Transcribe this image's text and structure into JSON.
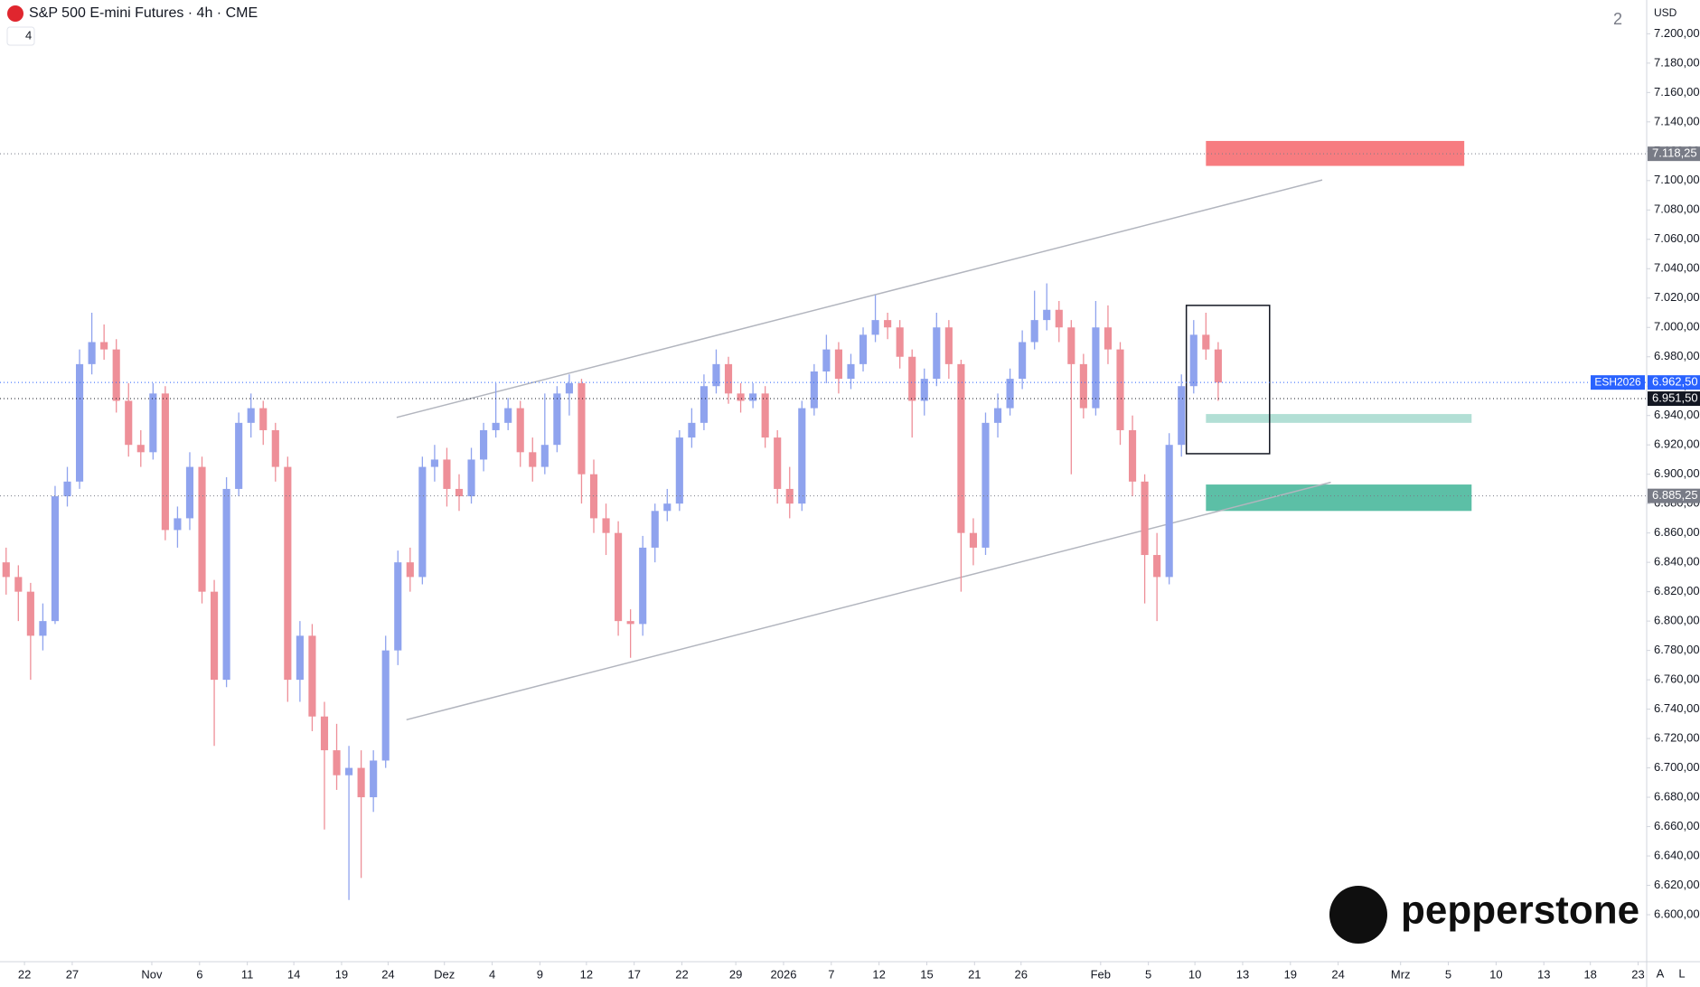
{
  "header": {
    "title": "S&P 500 E-mini Futures · 4h · CME",
    "indicator_count": "4",
    "currency": "USD",
    "layout_number": "2",
    "watermark": "pepperstone",
    "scale_buttons": [
      "A",
      "L"
    ]
  },
  "chart_data": {
    "type": "candlestick",
    "open": [
      6840,
      6830,
      6820,
      6790,
      6800,
      6885,
      6895,
      6975,
      6990,
      6985,
      6950,
      6920,
      6915,
      6955,
      6862,
      6870,
      6905,
      6820,
      6760,
      6890,
      6935,
      6945,
      6930,
      6905,
      6760,
      6790,
      6735,
      6712,
      6695,
      6700,
      6680,
      6705,
      6780,
      6840,
      6830,
      6905,
      6910,
      6890,
      6885,
      6910,
      6930,
      6935,
      6945,
      6915,
      6905,
      6920,
      6955,
      6962,
      6900,
      6870,
      6860,
      6800,
      6798,
      6850,
      6875,
      6880,
      6925,
      6935,
      6960,
      6975,
      6955,
      6950,
      6955,
      6925,
      6890,
      6880,
      6945,
      6970,
      6985,
      6965,
      6975,
      6995,
      7005,
      7000,
      6980,
      6950,
      6965,
      7000,
      6975,
      6860,
      6850,
      6935,
      6945,
      6965,
      6990,
      7005,
      7012,
      7000,
      6975,
      6945,
      7000,
      6985,
      6930,
      6895,
      6845,
      6830,
      6920,
      6960,
      6995,
      6985
    ],
    "high": [
      6850,
      6838,
      6826,
      6812,
      6892,
      6905,
      6985,
      7010,
      7002,
      6992,
      6962,
      6930,
      6962,
      6960,
      6878,
      6915,
      6912,
      6828,
      6898,
      6942,
      6955,
      6950,
      6935,
      6912,
      6800,
      6798,
      6745,
      6730,
      6715,
      6712,
      6712,
      6790,
      6848,
      6850,
      6912,
      6920,
      6918,
      6900,
      6918,
      6935,
      6962,
      6952,
      6950,
      6925,
      6955,
      6960,
      6968,
      6965,
      6910,
      6880,
      6868,
      6808,
      6858,
      6880,
      6890,
      6930,
      6945,
      6968,
      6985,
      6980,
      6962,
      6962,
      6960,
      6930,
      6905,
      6950,
      6975,
      6995,
      6990,
      6982,
      7000,
      7022,
      7010,
      7005,
      6985,
      6972,
      7010,
      7005,
      6978,
      6870,
      6942,
      6955,
      6972,
      6998,
      7025,
      7030,
      7018,
      7005,
      6982,
      7018,
      7015,
      6990,
      6940,
      6900,
      6860,
      6928,
      6968,
      7005,
      7010,
      6990
    ],
    "low": [
      6818,
      6800,
      6760,
      6780,
      6798,
      6878,
      6890,
      6968,
      6978,
      6942,
      6912,
      6905,
      6910,
      6855,
      6850,
      6862,
      6812,
      6715,
      6755,
      6885,
      6925,
      6920,
      6895,
      6745,
      6745,
      6725,
      6658,
      6685,
      6610,
      6625,
      6670,
      6700,
      6770,
      6820,
      6825,
      6895,
      6878,
      6875,
      6880,
      6902,
      6925,
      6930,
      6905,
      6895,
      6900,
      6915,
      6940,
      6880,
      6860,
      6845,
      6790,
      6775,
      6790,
      6840,
      6868,
      6875,
      6918,
      6930,
      6955,
      6948,
      6942,
      6945,
      6918,
      6880,
      6870,
      6875,
      6940,
      6962,
      6955,
      6958,
      6970,
      6990,
      6992,
      6972,
      6925,
      6940,
      6960,
      6965,
      6820,
      6838,
      6845,
      6925,
      6940,
      6958,
      6985,
      6998,
      6990,
      6900,
      6938,
      6940,
      6975,
      6920,
      6885,
      6812,
      6800,
      6825,
      6912,
      6955,
      6978,
      6950
    ],
    "close": [
      6830,
      6820,
      6790,
      6800,
      6885,
      6895,
      6975,
      6990,
      6985,
      6950,
      6920,
      6915,
      6955,
      6862,
      6870,
      6905,
      6820,
      6760,
      6890,
      6935,
      6945,
      6930,
      6905,
      6760,
      6790,
      6735,
      6712,
      6695,
      6700,
      6680,
      6705,
      6780,
      6840,
      6830,
      6905,
      6910,
      6890,
      6885,
      6910,
      6930,
      6935,
      6945,
      6915,
      6905,
      6920,
      6955,
      6962,
      6900,
      6870,
      6860,
      6800,
      6798,
      6850,
      6875,
      6880,
      6925,
      6935,
      6960,
      6975,
      6955,
      6950,
      6955,
      6925,
      6890,
      6880,
      6945,
      6970,
      6985,
      6965,
      6975,
      6995,
      7005,
      7000,
      6980,
      6950,
      6965,
      7000,
      6975,
      6860,
      6850,
      6935,
      6945,
      6965,
      6990,
      7005,
      7012,
      7000,
      6975,
      6945,
      7000,
      6985,
      6930,
      6895,
      6845,
      6830,
      6920,
      6960,
      6995,
      6985,
      6962.5
    ],
    "up_color": "#8fa3ee",
    "down_color": "#ee8f98",
    "xlim": [
      -0.5,
      134
    ],
    "xticks": [
      {
        "value": 1.5,
        "label": "22"
      },
      {
        "value": 5.4,
        "label": "27"
      },
      {
        "value": 11.9,
        "label": "Nov"
      },
      {
        "value": 15.8,
        "label": "6"
      },
      {
        "value": 19.7,
        "label": "11"
      },
      {
        "value": 23.5,
        "label": "14"
      },
      {
        "value": 27.4,
        "label": "19"
      },
      {
        "value": 31.2,
        "label": "24"
      },
      {
        "value": 35.8,
        "label": "Dez"
      },
      {
        "value": 39.7,
        "label": "4"
      },
      {
        "value": 43.6,
        "label": "9"
      },
      {
        "value": 47.4,
        "label": "12"
      },
      {
        "value": 51.3,
        "label": "17"
      },
      {
        "value": 55.2,
        "label": "22"
      },
      {
        "value": 59.6,
        "label": "29"
      },
      {
        "value": 63.5,
        "label": "2026"
      },
      {
        "value": 67.4,
        "label": "7"
      },
      {
        "value": 71.3,
        "label": "12"
      },
      {
        "value": 75.2,
        "label": "15"
      },
      {
        "value": 79.1,
        "label": "21"
      },
      {
        "value": 82.9,
        "label": "26"
      },
      {
        "value": 89.4,
        "label": "Feb"
      },
      {
        "value": 93.3,
        "label": "5"
      },
      {
        "value": 97.1,
        "label": "10"
      },
      {
        "value": 101.0,
        "label": "13"
      },
      {
        "value": 104.9,
        "label": "19"
      },
      {
        "value": 108.8,
        "label": "24"
      },
      {
        "value": 113.9,
        "label": "Mrz"
      },
      {
        "value": 117.8,
        "label": "5"
      },
      {
        "value": 121.7,
        "label": "10"
      },
      {
        "value": 125.6,
        "label": "13"
      },
      {
        "value": 129.4,
        "label": "18"
      },
      {
        "value": 133.3,
        "label": "23"
      }
    ],
    "ylim": [
      6568,
      7223
    ],
    "yticks": [
      {
        "value": 6600,
        "label": "6.600,00"
      },
      {
        "value": 6620,
        "label": "6.620,00"
      },
      {
        "value": 6640,
        "label": "6.640,00"
      },
      {
        "value": 6660,
        "label": "6.660,00"
      },
      {
        "value": 6680,
        "label": "6.680,00"
      },
      {
        "value": 6700,
        "label": "6.700,00"
      },
      {
        "value": 6720,
        "label": "6.720,00"
      },
      {
        "value": 6740,
        "label": "6.740,00"
      },
      {
        "value": 6760,
        "label": "6.760,00"
      },
      {
        "value": 6780,
        "label": "6.780,00"
      },
      {
        "value": 6800,
        "label": "6.800,00"
      },
      {
        "value": 6820,
        "label": "6.820,00"
      },
      {
        "value": 6840,
        "label": "6.840,00"
      },
      {
        "value": 6860,
        "label": "6.860,00"
      },
      {
        "value": 6880,
        "label": "6.880,00"
      },
      {
        "value": 6900,
        "label": "6.900,00"
      },
      {
        "value": 6920,
        "label": "6.920,00"
      },
      {
        "value": 6940,
        "label": "6.940,00"
      },
      {
        "value": 6960,
        "label": "6.960,00"
      },
      {
        "value": 6980,
        "label": "6.980,00"
      },
      {
        "value": 7000,
        "label": "7.000,00"
      },
      {
        "value": 7020,
        "label": "7.020,00"
      },
      {
        "value": 7040,
        "label": "7.040,00"
      },
      {
        "value": 7060,
        "label": "7.060,00"
      },
      {
        "value": 7080,
        "label": "7.080,00"
      },
      {
        "value": 7100,
        "label": "7.100,00"
      },
      {
        "value": 7120,
        "label": "7.120,00"
      },
      {
        "value": 7140,
        "label": "7.140,00"
      },
      {
        "value": 7160,
        "label": "7.160,00"
      },
      {
        "value": 7180,
        "label": "7.180,00"
      },
      {
        "value": 7200,
        "label": "7.200,00"
      }
    ],
    "price_labels": [
      {
        "value": 7118.25,
        "label": "7.118,25",
        "color": "#787b86"
      },
      {
        "value": 6885.25,
        "label": "6.885,25",
        "color": "#787b86"
      },
      {
        "value": 6951.5,
        "label": "6.951,50",
        "color": "#131722"
      },
      {
        "name": "ESH2026",
        "value": 6962.5,
        "label": "6.962,50",
        "color": "#2962ff"
      }
    ],
    "zones": [
      {
        "x": [
          98.0,
          119.1
        ],
        "y": [
          7110,
          7127
        ],
        "color": "#f77c80"
      },
      {
        "x": [
          98.0,
          119.7
        ],
        "y": [
          6935,
          6941
        ],
        "color": "#b2dfd5"
      },
      {
        "x": [
          98.0,
          119.7
        ],
        "y": [
          6875,
          6893
        ],
        "color": "#5cbfa6"
      }
    ],
    "trend_lines": [
      {
        "from": [
          31.9,
          6938.7
        ],
        "to": [
          107.5,
          7100.4
        ],
        "color": "#b2b5be"
      },
      {
        "from": [
          32.7,
          6732.8
        ],
        "to": [
          108.2,
          6894.5
        ],
        "color": "#b2b5be"
      }
    ],
    "box": {
      "x": [
        96.4,
        103.2
      ],
      "y": [
        6914,
        7015
      ],
      "color": "#131722"
    }
  }
}
